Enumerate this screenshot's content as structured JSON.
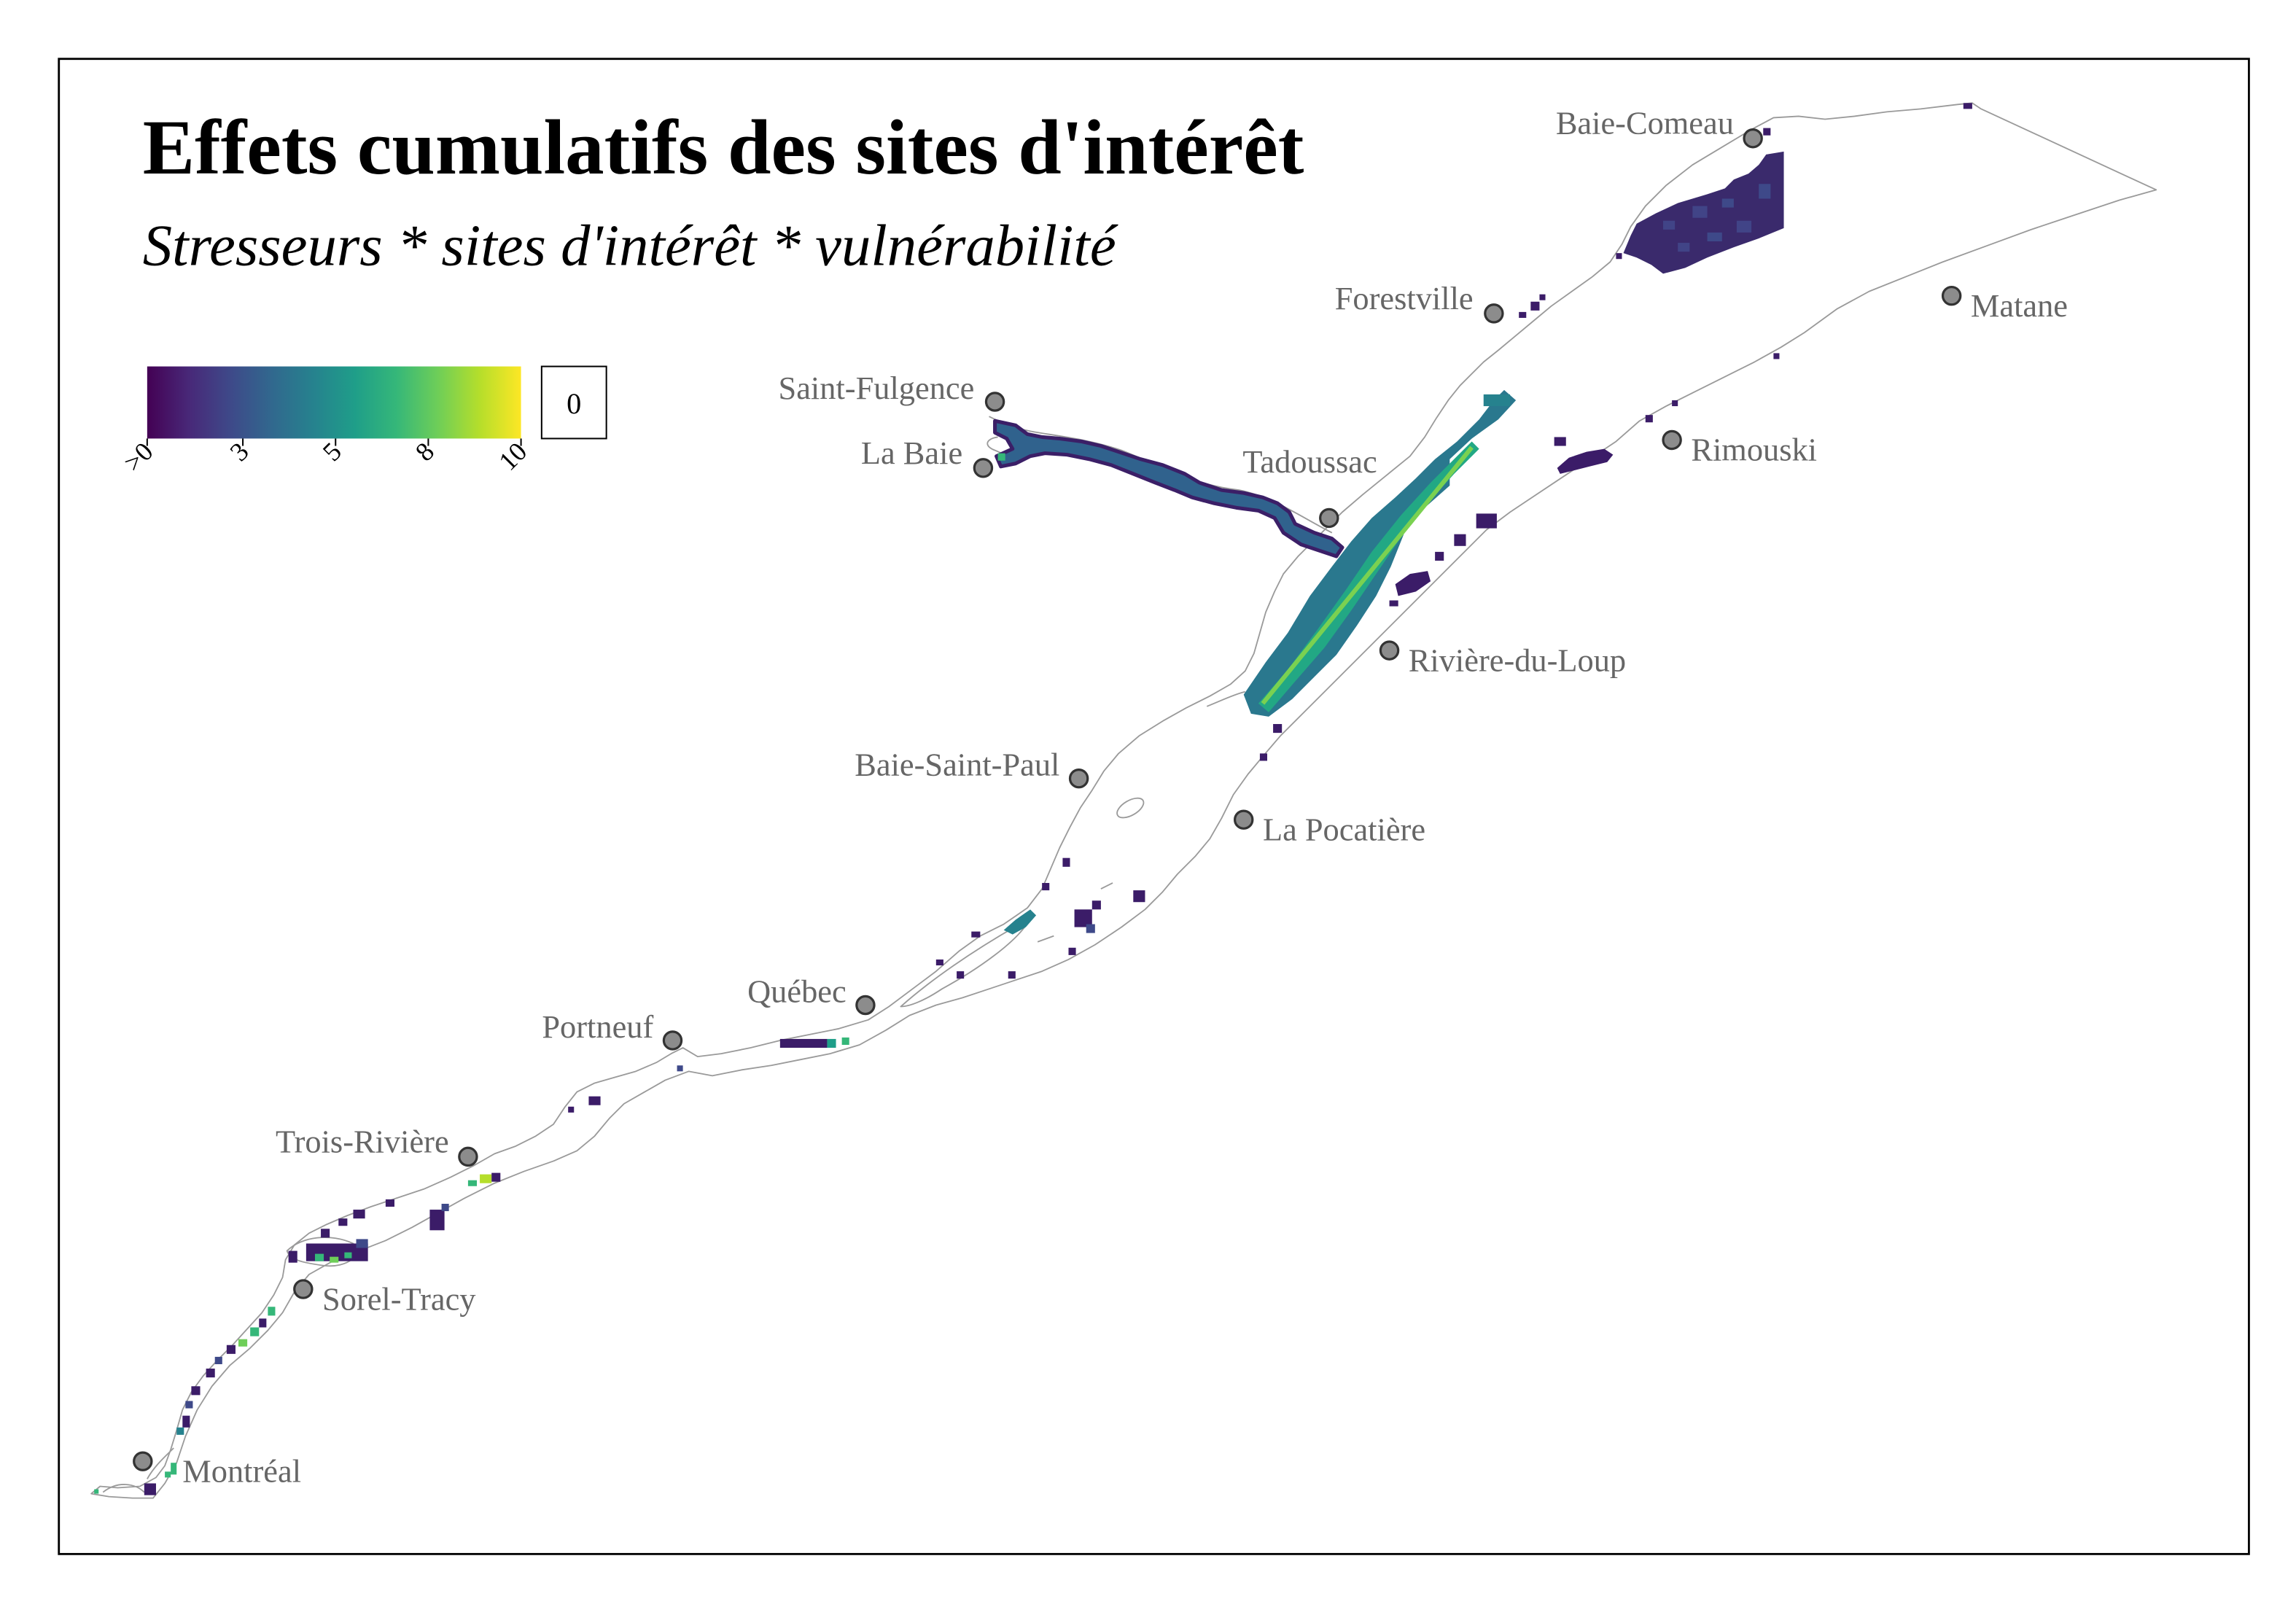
{
  "map": {
    "title": "Effets cumulatifs des sites d'intérêt",
    "subtitle": "Stresseurs * sites d'intérêt * vulnérabilité"
  },
  "legend": {
    "tick_labels": [
      ">0",
      "3",
      "5",
      "8",
      "10"
    ],
    "zero_label": "0",
    "colors": [
      "#440154",
      "#482878",
      "#3e4989",
      "#31688e",
      "#26828e",
      "#1f9e89",
      "#35b779",
      "#6ece58",
      "#b5de2b",
      "#fde725"
    ]
  },
  "cities": [
    {
      "name": "Baie-Comeau"
    },
    {
      "name": "Forestville"
    },
    {
      "name": "Matane"
    },
    {
      "name": "Saint-Fulgence"
    },
    {
      "name": "La Baie"
    },
    {
      "name": "Tadoussac"
    },
    {
      "name": "Rimouski"
    },
    {
      "name": "Rivière-du-Loup"
    },
    {
      "name": "Baie-Saint-Paul"
    },
    {
      "name": "La Pocatière"
    },
    {
      "name": "Québec"
    },
    {
      "name": "Portneuf"
    },
    {
      "name": "Trois-Rivière"
    },
    {
      "name": "Sorel-Tracy"
    },
    {
      "name": "Montréal"
    }
  ],
  "style": {
    "city_point_fill": "#8c8c8c",
    "city_label_color": "#666666",
    "shoreline_color": "#9a9a9a"
  }
}
